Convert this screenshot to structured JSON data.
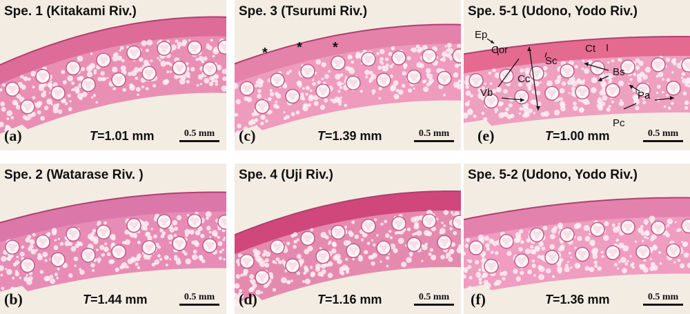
{
  "panels": {
    "a": {
      "title": "Spe. 1 (Kitakami Riv.)",
      "letter": "(a)",
      "t_sym": "T",
      "t_val": "=1.01 mm",
      "scale": "0.5 mm"
    },
    "b": {
      "title": "Spe. 2 (Watarase Riv. )",
      "letter": "(b)",
      "t_sym": "T",
      "t_val": "=1.44 mm",
      "scale": "0.5 mm"
    },
    "c": {
      "title": "Spe. 3 (Tsurumi Riv.)",
      "letter": "(c)",
      "t_sym": "T",
      "t_val": "=1.39 mm",
      "scale": "0.5 mm",
      "marker": "*"
    },
    "d": {
      "title": "Spe. 4 (Uji Riv.)",
      "letter": "(d)",
      "t_sym": "T",
      "t_val": "=1.16 mm",
      "scale": "0.5 mm"
    },
    "e": {
      "title": "Spe. 5-1 (Udono, Yodo Riv.)",
      "letter": "(e)",
      "t_sym": "T",
      "t_val": "=1.00 mm",
      "scale": "0.5 mm",
      "labels": {
        "ep": "Ep",
        "cor": "Cor",
        "cc": "Cc",
        "sc": "Sc",
        "ct": "Ct",
        "bs": "Bs",
        "vb": "Vb",
        "pa": "Pa",
        "pc": "Pc"
      }
    },
    "f": {
      "title": "Spe. 5-2 (Udono, Yodo Riv.)",
      "letter": "(f)",
      "t_sym": "T",
      "t_val": "=1.36 mm",
      "scale": "0.5 mm"
    }
  }
}
